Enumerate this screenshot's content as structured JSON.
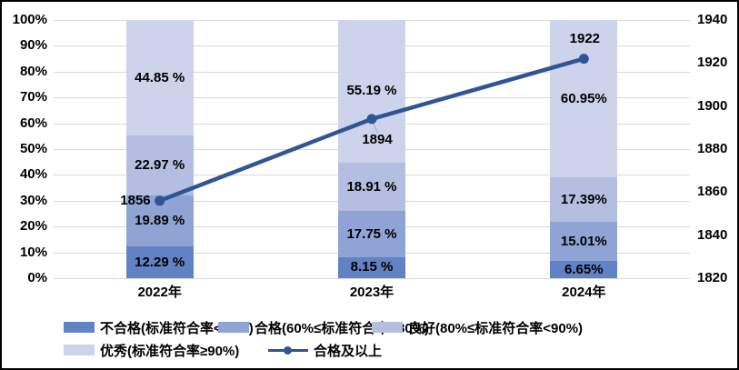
{
  "chart_data": {
    "type": "bar",
    "subtype": "stacked-percent-bar-with-line",
    "title": "",
    "categories": [
      "2022年",
      "2023年",
      "2024年"
    ],
    "bar_series": [
      {
        "name": "不合格(标准符合率<60%)",
        "color": "#6282C6",
        "values": [
          12.29,
          8.15,
          6.65
        ],
        "labels": [
          "12.29 %",
          "8.15 %",
          "6.65%"
        ]
      },
      {
        "name": "合格(60%≤标准符合率<80%)",
        "color": "#8FA3D5",
        "values": [
          19.89,
          17.75,
          15.01
        ],
        "labels": [
          "19.89 %",
          "17.75 %",
          "15.01%"
        ]
      },
      {
        "name": "良好(80%≤标准符合率<90%)",
        "color": "#B3BEE0",
        "values": [
          22.97,
          18.91,
          17.39
        ],
        "labels": [
          "22.97 %",
          "18.91 %",
          "17.39%"
        ]
      },
      {
        "name": "优秀(标准符合率≥90%)",
        "color": "#CCD3EA",
        "values": [
          44.85,
          55.19,
          60.95
        ],
        "labels": [
          "44.85 %",
          "55.19 %",
          "60.95%"
        ]
      }
    ],
    "line_series": {
      "name": "合格及以上",
      "color": "#2F5597",
      "values": [
        1856,
        1894,
        1922
      ],
      "labels": [
        "1856",
        "1894",
        "1922"
      ]
    },
    "left_axis": {
      "min": 0,
      "max": 100,
      "ticks": [
        "100%",
        "90%",
        "80%",
        "70%",
        "60%",
        "50%",
        "40%",
        "30%",
        "20%",
        "10%",
        "0%"
      ]
    },
    "right_axis": {
      "min": 1820,
      "max": 1940,
      "ticks": [
        "1940",
        "1920",
        "1900",
        "1880",
        "1860",
        "1840",
        "1820"
      ]
    },
    "grid": true,
    "legend_position": "bottom",
    "colors": {
      "gridline": "#d9d9d9",
      "leader_line": "#a6a6a6",
      "text": "#000000",
      "border": "#000000",
      "background": "#ffffff"
    }
  }
}
